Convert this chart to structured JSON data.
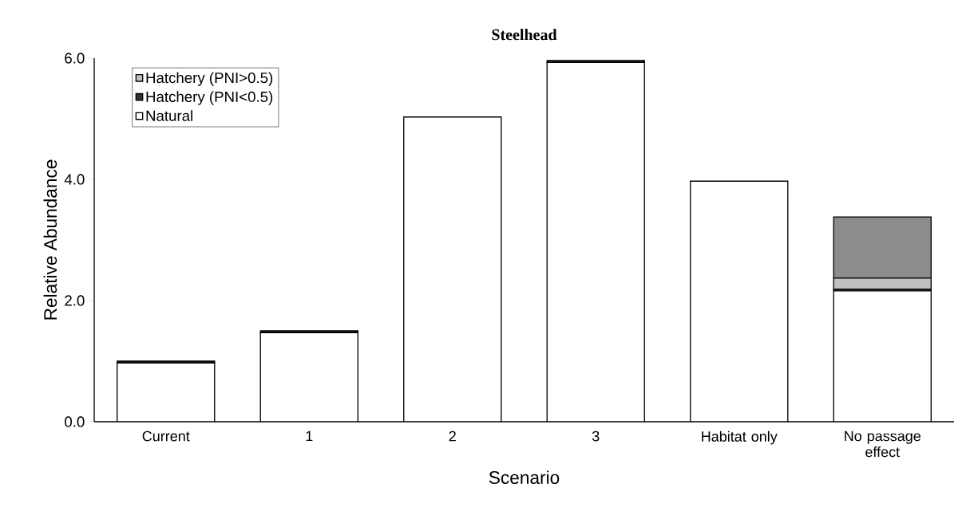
{
  "chart_data": {
    "type": "bar",
    "stacked": true,
    "title": "Steelhead",
    "xlabel": "Scenario",
    "ylabel": "Relative Abundance",
    "categories": [
      "Current",
      "1",
      "2",
      "3",
      "Habitat only",
      "No passage effect"
    ],
    "series": [
      {
        "name": "Natural",
        "color": "#ffffff",
        "values": [
          0.97,
          1.47,
          5.03,
          5.93,
          3.97,
          2.16
        ]
      },
      {
        "name": "Hatchery (PNI<0.5)",
        "color": "#333333",
        "values": [
          0.03,
          0.03,
          0,
          0.03,
          0,
          0.03
        ]
      },
      {
        "name": "Hatchery (PNI>0.5)",
        "color": "#c0c0c0",
        "values": [
          0,
          0,
          0,
          0,
          0,
          0.18
        ]
      },
      {
        "color": "#8c8c8c",
        "values": [
          0,
          0,
          0,
          0,
          0,
          1.01
        ]
      }
    ],
    "ylim": [
      0,
      6
    ],
    "yticks": [
      {
        "value": 0,
        "label": "0.0"
      },
      {
        "value": 2,
        "label": "2.0"
      },
      {
        "value": 4,
        "label": "4.0"
      },
      {
        "value": 6,
        "label": "6.0"
      }
    ],
    "grid": false,
    "legend": "top left"
  }
}
